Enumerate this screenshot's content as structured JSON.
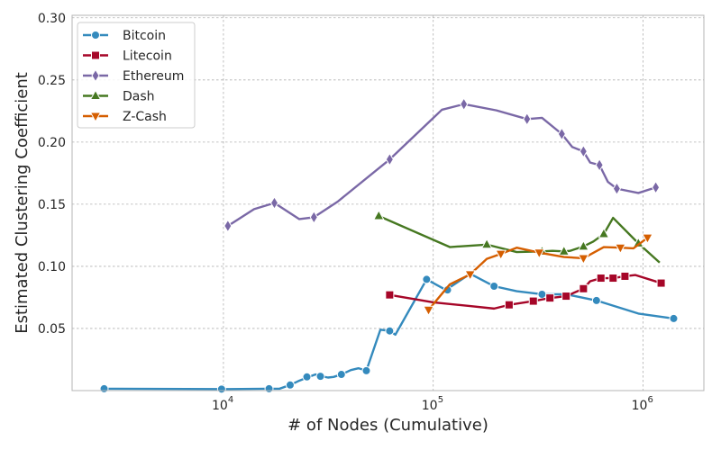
{
  "chart_data": {
    "type": "line",
    "title": "",
    "xlabel": "# of Nodes (Cumulative)",
    "ylabel": "Estimated Clustering Coefficient",
    "x_scale": "log",
    "xlim": [
      1900,
      1950000
    ],
    "ylim": [
      0.0,
      0.302
    ],
    "x_ticks": [
      {
        "value": 10000,
        "label_base": "10",
        "label_exp": "4"
      },
      {
        "value": 100000,
        "label_base": "10",
        "label_exp": "5"
      },
      {
        "value": 1000000,
        "label_base": "10",
        "label_exp": "6"
      }
    ],
    "y_ticks": [
      {
        "value": 0.05,
        "label": "0.05"
      },
      {
        "value": 0.1,
        "label": "0.10"
      },
      {
        "value": 0.15,
        "label": "0.15"
      },
      {
        "value": 0.2,
        "label": "0.20"
      },
      {
        "value": 0.25,
        "label": "0.25"
      },
      {
        "value": 0.3,
        "label": "0.30"
      }
    ],
    "grid": true,
    "legend_position": "top-left",
    "series": [
      {
        "name": "Bitcoin",
        "color": "#348abd",
        "marker": "circle",
        "line": [
          [
            2700,
            0.0015
          ],
          [
            9800,
            0.0012
          ],
          [
            16000,
            0.0015
          ],
          [
            18500,
            0.0015
          ],
          [
            20800,
            0.0045
          ],
          [
            23000,
            0.008
          ],
          [
            25500,
            0.011
          ],
          [
            27500,
            0.013
          ],
          [
            29500,
            0.0115
          ],
          [
            31500,
            0.0105
          ],
          [
            33500,
            0.011
          ],
          [
            36500,
            0.013
          ],
          [
            40500,
            0.0165
          ],
          [
            44000,
            0.018
          ],
          [
            48000,
            0.016
          ],
          [
            56000,
            0.049
          ],
          [
            62000,
            0.048
          ],
          [
            66000,
            0.045
          ],
          [
            93000,
            0.0895
          ],
          [
            115000,
            0.081
          ],
          [
            150000,
            0.094
          ],
          [
            195000,
            0.084
          ],
          [
            250000,
            0.08
          ],
          [
            330000,
            0.0775
          ],
          [
            430000,
            0.0775
          ],
          [
            600000,
            0.0725
          ],
          [
            950000,
            0.062
          ],
          [
            1400000,
            0.058
          ]
        ],
        "markers": [
          [
            2700,
            0.0015
          ],
          [
            9800,
            0.0012
          ],
          [
            16500,
            0.0015
          ],
          [
            20800,
            0.0045
          ],
          [
            25000,
            0.011
          ],
          [
            29000,
            0.0115
          ],
          [
            36500,
            0.013
          ],
          [
            48000,
            0.016
          ],
          [
            62000,
            0.048
          ],
          [
            93000,
            0.0895
          ],
          [
            117000,
            0.081
          ],
          [
            195000,
            0.084
          ],
          [
            330000,
            0.0775
          ],
          [
            600000,
            0.0725
          ],
          [
            1400000,
            0.058
          ]
        ]
      },
      {
        "name": "Litecoin",
        "color": "#a60628",
        "marker": "square",
        "line": [
          [
            62000,
            0.077
          ],
          [
            100000,
            0.071
          ],
          [
            150000,
            0.068
          ],
          [
            195000,
            0.066
          ],
          [
            230000,
            0.069
          ],
          [
            300000,
            0.072
          ],
          [
            360000,
            0.0745
          ],
          [
            430000,
            0.076
          ],
          [
            520000,
            0.082
          ],
          [
            560000,
            0.088
          ],
          [
            630000,
            0.0905
          ],
          [
            720000,
            0.0905
          ],
          [
            820000,
            0.092
          ],
          [
            920000,
            0.093
          ],
          [
            1220000,
            0.0865
          ]
        ],
        "markers": [
          [
            62000,
            0.077
          ],
          [
            230000,
            0.069
          ],
          [
            300000,
            0.072
          ],
          [
            360000,
            0.0745
          ],
          [
            430000,
            0.076
          ],
          [
            520000,
            0.082
          ],
          [
            630000,
            0.0905
          ],
          [
            720000,
            0.0905
          ],
          [
            820000,
            0.092
          ],
          [
            1220000,
            0.0865
          ]
        ]
      },
      {
        "name": "Ethereum",
        "color": "#7a68a6",
        "marker": "thin_diamond",
        "line": [
          [
            10500,
            0.1325
          ],
          [
            14000,
            0.146
          ],
          [
            17500,
            0.151
          ],
          [
            23000,
            0.138
          ],
          [
            27000,
            0.1395
          ],
          [
            35000,
            0.152
          ],
          [
            62000,
            0.186
          ],
          [
            110000,
            0.226
          ],
          [
            140000,
            0.2305
          ],
          [
            200000,
            0.2255
          ],
          [
            280000,
            0.2185
          ],
          [
            330000,
            0.2195
          ],
          [
            410000,
            0.2065
          ],
          [
            460000,
            0.196
          ],
          [
            520000,
            0.1925
          ],
          [
            560000,
            0.1835
          ],
          [
            620000,
            0.1815
          ],
          [
            680000,
            0.168
          ],
          [
            750000,
            0.1625
          ],
          [
            950000,
            0.159
          ],
          [
            1150000,
            0.1635
          ]
        ],
        "markers": [
          [
            10500,
            0.1325
          ],
          [
            17500,
            0.151
          ],
          [
            27000,
            0.1395
          ],
          [
            62000,
            0.186
          ],
          [
            140000,
            0.2305
          ],
          [
            280000,
            0.2185
          ],
          [
            410000,
            0.2065
          ],
          [
            520000,
            0.1925
          ],
          [
            620000,
            0.1815
          ],
          [
            750000,
            0.1625
          ],
          [
            1150000,
            0.1635
          ]
        ]
      },
      {
        "name": "Dash",
        "color": "#467821",
        "marker": "triangle_up",
        "line": [
          [
            55000,
            0.1405
          ],
          [
            120000,
            0.1155
          ],
          [
            180000,
            0.1175
          ],
          [
            250000,
            0.1115
          ],
          [
            330000,
            0.112
          ],
          [
            370000,
            0.1125
          ],
          [
            420000,
            0.112
          ],
          [
            450000,
            0.1125
          ],
          [
            520000,
            0.116
          ],
          [
            580000,
            0.12
          ],
          [
            650000,
            0.126
          ],
          [
            720000,
            0.139
          ],
          [
            950000,
            0.1185
          ],
          [
            1200000,
            0.103
          ]
        ],
        "markers": [
          [
            55000,
            0.1405
          ],
          [
            180000,
            0.1175
          ],
          [
            330000,
            0.112
          ],
          [
            420000,
            0.112
          ],
          [
            520000,
            0.116
          ],
          [
            650000,
            0.126
          ],
          [
            950000,
            0.1185
          ]
        ]
      },
      {
        "name": "Z-Cash",
        "color": "#d55e00",
        "marker": "triangle_down",
        "line": [
          [
            95000,
            0.065
          ],
          [
            120000,
            0.0855
          ],
          [
            150000,
            0.0935
          ],
          [
            180000,
            0.106
          ],
          [
            210000,
            0.11
          ],
          [
            250000,
            0.115
          ],
          [
            320000,
            0.111
          ],
          [
            420000,
            0.1075
          ],
          [
            520000,
            0.1065
          ],
          [
            650000,
            0.1155
          ],
          [
            780000,
            0.115
          ],
          [
            900000,
            0.1145
          ],
          [
            1050000,
            0.123
          ]
        ],
        "markers": [
          [
            95000,
            0.065
          ],
          [
            150000,
            0.0935
          ],
          [
            210000,
            0.11
          ],
          [
            320000,
            0.111
          ],
          [
            520000,
            0.1065
          ],
          [
            780000,
            0.115
          ],
          [
            1050000,
            0.123
          ]
        ]
      }
    ]
  }
}
